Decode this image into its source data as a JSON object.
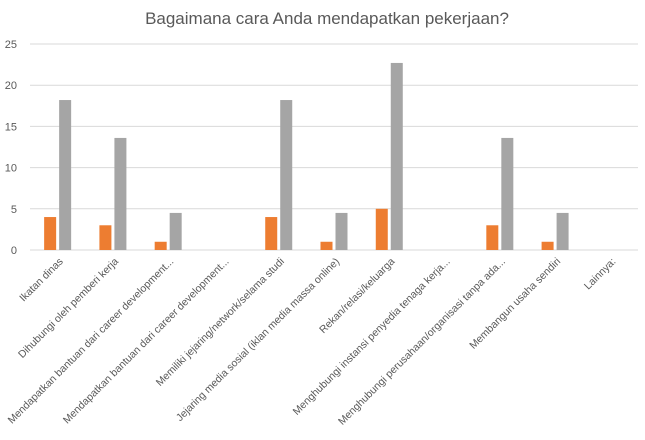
{
  "chart_data": {
    "type": "bar",
    "title": "Bagaimana cara Anda mendapatkan pekerjaan?",
    "xlabel": "",
    "ylabel": "",
    "ylim": [
      0,
      25
    ],
    "yticks": [
      0,
      5,
      10,
      15,
      20,
      25
    ],
    "grid": true,
    "legend": "none",
    "categories": [
      "Ikatan dinas",
      "Dihubungi oleh pemberi kerja",
      "Mendapatkan bantuan dari career development...",
      "Mendapatkan bantuan dari career development...",
      "Memiliki jejaring/network/selama studi",
      "Jejaring media sosial (iklan media massa online)",
      "Rekan/relasi/keluarga",
      "Menghubungi instansi penyedia tenaga kerja...",
      "Menghubungi perusahaan/organisasi tanpa ada...",
      "Membangun usaha sendiri",
      "Lainnya:"
    ],
    "series": [
      {
        "values": [
          4,
          3,
          1,
          0,
          4,
          1,
          5,
          0,
          3,
          1,
          0
        ],
        "color": "#ED7D31"
      },
      {
        "values": [
          18.2,
          13.6,
          4.5,
          0,
          18.2,
          4.5,
          22.7,
          0,
          13.6,
          4.5,
          0
        ],
        "color": "#A5A5A5"
      }
    ],
    "colors": {
      "grid": "#D9D9D9",
      "text": "#595959"
    }
  }
}
